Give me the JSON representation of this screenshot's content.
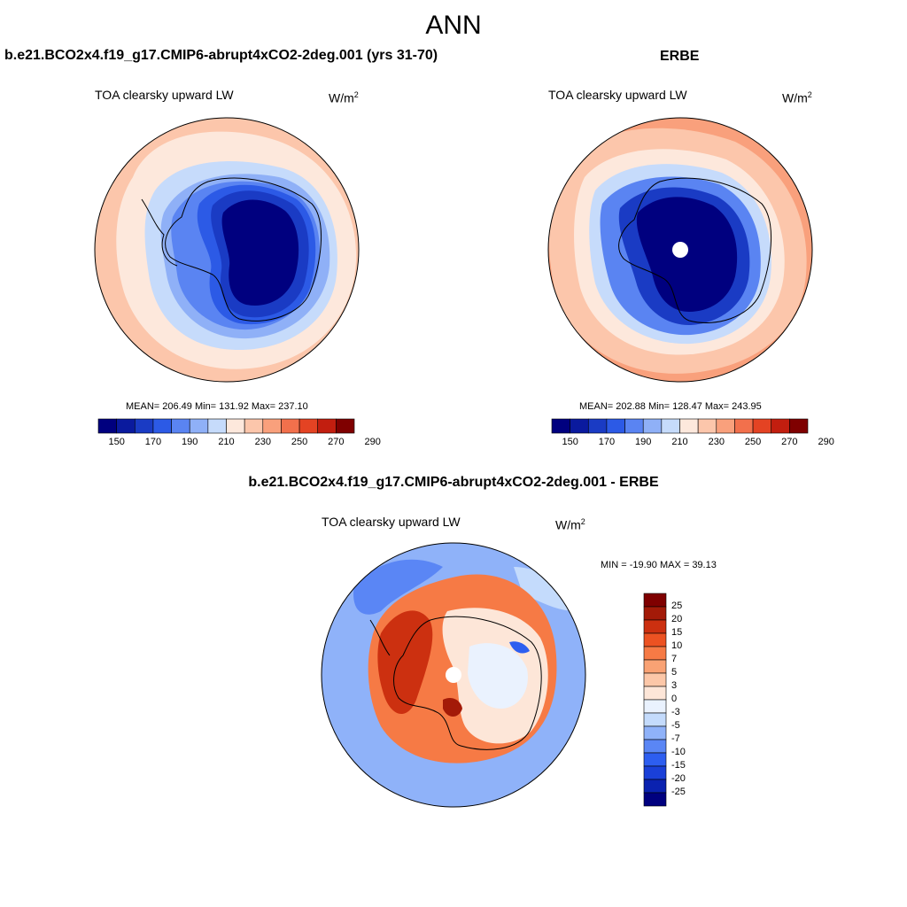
{
  "page": {
    "title": "ANN"
  },
  "panels": {
    "model": {
      "header": "b.e21.BCO2x4.f19_g17.CMIP6-abrupt4xCO2-2deg.001 (yrs 31-70)",
      "variable": "TOA clearsky upward LW",
      "units_base": "W/m",
      "units_exp": "2",
      "stats": "MEAN= 206.49  Min= 131.92  Max= 237.10"
    },
    "obs": {
      "header": "ERBE",
      "variable": "TOA clearsky upward LW",
      "units_base": "W/m",
      "units_exp": "2",
      "stats": "MEAN= 202.88  Min= 128.47  Max= 243.95"
    },
    "diff": {
      "header": "b.e21.BCO2x4.f19_g17.CMIP6-abrupt4xCO2-2deg.001 - ERBE",
      "variable": "TOA clearsky upward LW",
      "units_base": "W/m",
      "units_exp": "2",
      "stats": "MIN = -19.90 MAX =  39.13"
    }
  },
  "colorbars": {
    "abs": {
      "colors": [
        "#00007f",
        "#0a1a9e",
        "#1a3bc4",
        "#2c5ae6",
        "#5a84f2",
        "#8fb0f7",
        "#c6dbfb",
        "#fde8dc",
        "#fcc6ab",
        "#f9a07c",
        "#f2704c",
        "#e44323",
        "#c21e0f",
        "#7f0000"
      ],
      "labels": [
        "150",
        "170",
        "190",
        "210",
        "230",
        "250",
        "270",
        "290"
      ]
    },
    "diff": {
      "colors": [
        "#00007f",
        "#0a22b0",
        "#1a40d8",
        "#2d5ef0",
        "#5a86f5",
        "#8fb2f9",
        "#c4dbfc",
        "#eaf2fe",
        "#fde6d8",
        "#fcc7a8",
        "#f9a274",
        "#f67a45",
        "#ec5222",
        "#cc3010",
        "#a31a08",
        "#7f0000"
      ],
      "labels": [
        "25",
        "20",
        "15",
        "10",
        "7",
        "5",
        "3",
        "0",
        "-3",
        "-5",
        "-7",
        "-10",
        "-15",
        "-20",
        "-25"
      ]
    }
  }
}
